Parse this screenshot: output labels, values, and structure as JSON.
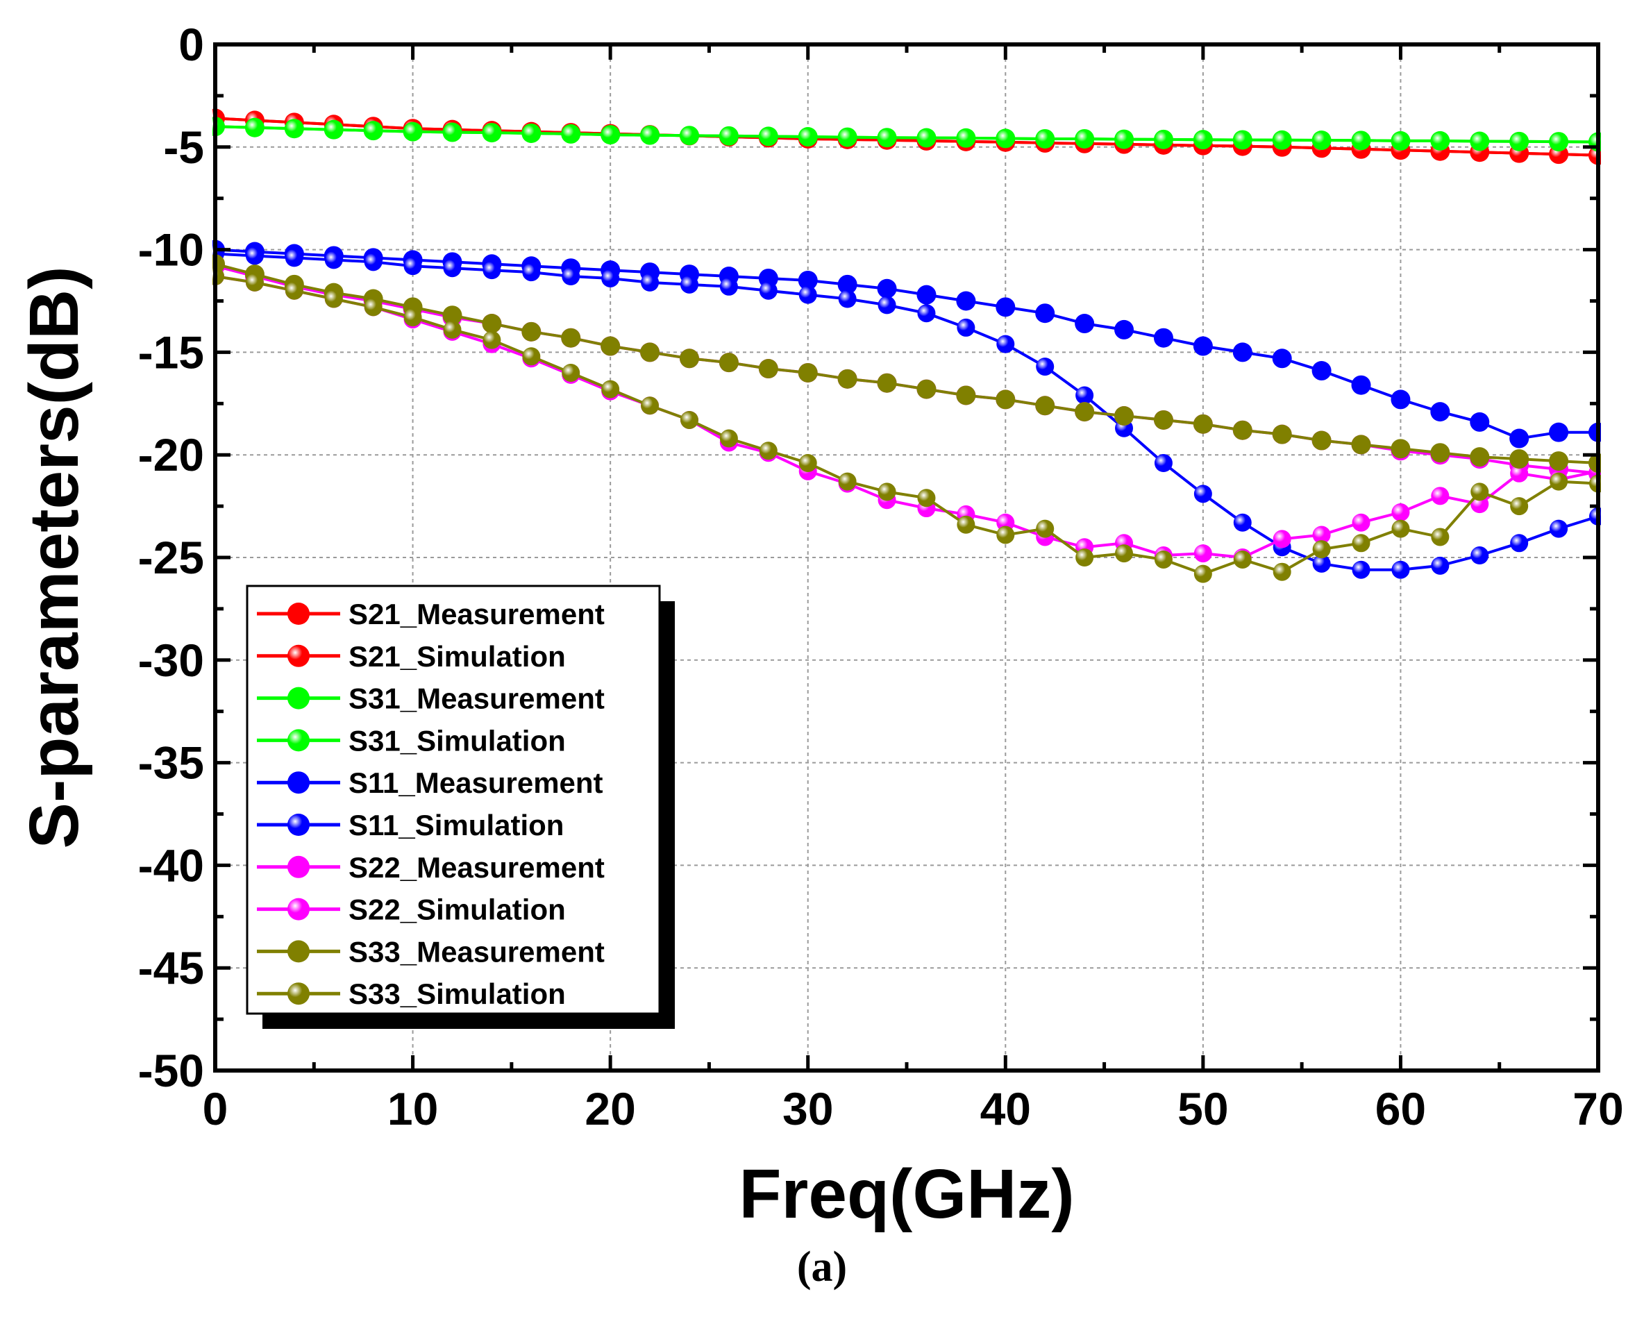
{
  "caption": "(a)",
  "chart_data": {
    "type": "line",
    "title": "",
    "xlabel": "Freq(GHz)",
    "ylabel": "S-parameters(dB)",
    "xlim": [
      0,
      70
    ],
    "ylim": [
      -50,
      0
    ],
    "xticks": [
      0,
      10,
      20,
      30,
      40,
      50,
      60,
      70
    ],
    "yticks": [
      0,
      -5,
      -10,
      -15,
      -20,
      -25,
      -30,
      -35,
      -40,
      -45,
      -50
    ],
    "grid": true,
    "legend_position": "lower-left",
    "colors": {
      "red": "#ff0000",
      "green": "#00ff00",
      "blue": "#0000ff",
      "magenta": "#ff00ff",
      "olive": "#808000"
    },
    "series": [
      {
        "name": "S21_Measurement",
        "color": "#ff0000",
        "marker": "filled",
        "x": [
          0,
          2,
          4,
          6,
          8,
          10,
          12,
          14,
          16,
          18,
          20,
          22,
          24,
          26,
          28,
          30,
          32,
          34,
          36,
          38,
          40,
          42,
          44,
          46,
          48,
          50,
          52,
          54,
          56,
          58,
          60,
          62,
          64,
          66,
          68,
          70
        ],
        "y": [
          -3.6,
          -3.7,
          -3.8,
          -3.9,
          -4.0,
          -4.1,
          -4.15,
          -4.2,
          -4.25,
          -4.3,
          -4.35,
          -4.4,
          -4.45,
          -4.5,
          -4.55,
          -4.6,
          -4.63,
          -4.66,
          -4.7,
          -4.73,
          -4.76,
          -4.8,
          -4.83,
          -4.86,
          -4.9,
          -4.93,
          -4.96,
          -5.0,
          -5.05,
          -5.1,
          -5.15,
          -5.2,
          -5.25,
          -5.3,
          -5.35,
          -5.4
        ]
      },
      {
        "name": "S21_Simulation",
        "color": "#ff0000",
        "marker": "shaded",
        "x": [
          0,
          2,
          4,
          6,
          8,
          10,
          12,
          14,
          16,
          18,
          20,
          22,
          24,
          26,
          28,
          30,
          32,
          34,
          36,
          38,
          40,
          42,
          44,
          46,
          48,
          50,
          52,
          54,
          56,
          58,
          60,
          62,
          64,
          66,
          68,
          70
        ],
        "y": [
          -3.6,
          -3.7,
          -3.8,
          -3.9,
          -4.0,
          -4.1,
          -4.15,
          -4.2,
          -4.25,
          -4.3,
          -4.35,
          -4.4,
          -4.45,
          -4.5,
          -4.55,
          -4.6,
          -4.63,
          -4.66,
          -4.7,
          -4.73,
          -4.76,
          -4.8,
          -4.83,
          -4.86,
          -4.9,
          -4.93,
          -4.96,
          -5.0,
          -5.05,
          -5.1,
          -5.15,
          -5.2,
          -5.25,
          -5.3,
          -5.35,
          -5.4
        ]
      },
      {
        "name": "S31_Measurement",
        "color": "#00ff00",
        "marker": "filled",
        "x": [
          0,
          2,
          4,
          6,
          8,
          10,
          12,
          14,
          16,
          18,
          20,
          22,
          24,
          26,
          28,
          30,
          32,
          34,
          36,
          38,
          40,
          42,
          44,
          46,
          48,
          50,
          52,
          54,
          56,
          58,
          60,
          62,
          64,
          66,
          68,
          70
        ],
        "y": [
          -4.0,
          -4.05,
          -4.1,
          -4.15,
          -4.2,
          -4.25,
          -4.28,
          -4.3,
          -4.33,
          -4.36,
          -4.4,
          -4.42,
          -4.44,
          -4.46,
          -4.48,
          -4.5,
          -4.52,
          -4.54,
          -4.55,
          -4.56,
          -4.58,
          -4.6,
          -4.6,
          -4.62,
          -4.63,
          -4.64,
          -4.65,
          -4.66,
          -4.67,
          -4.68,
          -4.7,
          -4.7,
          -4.72,
          -4.73,
          -4.74,
          -4.75
        ]
      },
      {
        "name": "S31_Simulation",
        "color": "#00ff00",
        "marker": "shaded",
        "x": [
          0,
          2,
          4,
          6,
          8,
          10,
          12,
          14,
          16,
          18,
          20,
          22,
          24,
          26,
          28,
          30,
          32,
          34,
          36,
          38,
          40,
          42,
          44,
          46,
          48,
          50,
          52,
          54,
          56,
          58,
          60,
          62,
          64,
          66,
          68,
          70
        ],
        "y": [
          -4.0,
          -4.05,
          -4.1,
          -4.15,
          -4.2,
          -4.25,
          -4.28,
          -4.3,
          -4.33,
          -4.36,
          -4.4,
          -4.42,
          -4.44,
          -4.46,
          -4.48,
          -4.5,
          -4.52,
          -4.54,
          -4.55,
          -4.56,
          -4.58,
          -4.6,
          -4.6,
          -4.62,
          -4.63,
          -4.64,
          -4.65,
          -4.66,
          -4.67,
          -4.68,
          -4.7,
          -4.7,
          -4.72,
          -4.73,
          -4.74,
          -4.75
        ]
      },
      {
        "name": "S11_Measurement",
        "color": "#0000ff",
        "marker": "filled",
        "x": [
          0,
          2,
          4,
          6,
          8,
          10,
          12,
          14,
          16,
          18,
          20,
          22,
          24,
          26,
          28,
          30,
          32,
          34,
          36,
          38,
          40,
          42,
          44,
          46,
          48,
          50,
          52,
          54,
          56,
          58,
          60,
          62,
          64,
          66,
          68,
          70
        ],
        "y": [
          -10.0,
          -10.1,
          -10.2,
          -10.3,
          -10.4,
          -10.5,
          -10.6,
          -10.7,
          -10.8,
          -10.9,
          -11.0,
          -11.1,
          -11.2,
          -11.3,
          -11.4,
          -11.5,
          -11.7,
          -11.9,
          -12.2,
          -12.5,
          -12.8,
          -13.1,
          -13.6,
          -13.9,
          -14.3,
          -14.7,
          -15.0,
          -15.3,
          -15.9,
          -16.6,
          -17.3,
          -17.9,
          -18.4,
          -19.2,
          -18.9,
          -18.9
        ]
      },
      {
        "name": "S11_Simulation",
        "color": "#0000ff",
        "marker": "shaded",
        "x": [
          0,
          2,
          4,
          6,
          8,
          10,
          12,
          14,
          16,
          18,
          20,
          22,
          24,
          26,
          28,
          30,
          32,
          34,
          36,
          38,
          40,
          42,
          44,
          46,
          48,
          50,
          52,
          54,
          56,
          58,
          60,
          62,
          64,
          66,
          68,
          70
        ],
        "y": [
          -10.2,
          -10.3,
          -10.4,
          -10.5,
          -10.6,
          -10.8,
          -10.9,
          -11.0,
          -11.1,
          -11.3,
          -11.4,
          -11.6,
          -11.7,
          -11.8,
          -12.0,
          -12.2,
          -12.4,
          -12.7,
          -13.1,
          -13.8,
          -14.6,
          -15.7,
          -17.1,
          -18.7,
          -20.4,
          -21.9,
          -23.3,
          -24.5,
          -25.3,
          -25.6,
          -25.6,
          -25.4,
          -24.9,
          -24.3,
          -23.6,
          -23.0
        ]
      },
      {
        "name": "S22_Measurement",
        "color": "#ff00ff",
        "marker": "filled",
        "x": [
          0,
          2,
          4,
          6,
          8,
          10,
          12,
          14,
          16,
          18,
          20,
          22,
          24,
          26,
          28,
          30,
          32,
          34,
          36,
          38,
          40,
          42,
          44,
          46,
          48,
          50,
          52,
          54,
          56,
          58,
          60,
          62,
          64,
          66,
          68,
          70
        ],
        "y": [
          -10.8,
          -11.3,
          -11.8,
          -12.2,
          -12.5,
          -12.9,
          -13.3,
          -13.6,
          -14.0,
          -14.3,
          -14.7,
          -15.0,
          -15.3,
          -15.5,
          -15.8,
          -16.0,
          -16.3,
          -16.5,
          -16.8,
          -17.1,
          -17.3,
          -17.6,
          -17.9,
          -18.1,
          -18.3,
          -18.5,
          -18.8,
          -19.0,
          -19.3,
          -19.5,
          -19.8,
          -20.0,
          -20.2,
          -20.5,
          -20.7,
          -20.9
        ]
      },
      {
        "name": "S22_Simulation",
        "color": "#ff00ff",
        "marker": "shaded",
        "x": [
          0,
          2,
          4,
          6,
          8,
          10,
          12,
          14,
          16,
          18,
          20,
          22,
          24,
          26,
          28,
          30,
          32,
          34,
          36,
          38,
          40,
          42,
          44,
          46,
          48,
          50,
          52,
          54,
          56,
          58,
          60,
          62,
          64,
          66,
          68,
          70
        ],
        "y": [
          -11.3,
          -11.6,
          -12.0,
          -12.4,
          -12.8,
          -13.4,
          -14.0,
          -14.6,
          -15.3,
          -16.1,
          -16.9,
          -17.6,
          -18.3,
          -19.4,
          -19.9,
          -20.8,
          -21.4,
          -22.2,
          -22.6,
          -22.9,
          -23.3,
          -24.0,
          -24.5,
          -24.3,
          -24.9,
          -24.8,
          -25.0,
          -24.1,
          -23.9,
          -23.3,
          -22.8,
          -22.0,
          -22.4,
          -20.9,
          -21.2,
          -20.8
        ]
      },
      {
        "name": "S33_Measurement",
        "color": "#808000",
        "marker": "filled",
        "x": [
          0,
          2,
          4,
          6,
          8,
          10,
          12,
          14,
          16,
          18,
          20,
          22,
          24,
          26,
          28,
          30,
          32,
          34,
          36,
          38,
          40,
          42,
          44,
          46,
          48,
          50,
          52,
          54,
          56,
          58,
          60,
          62,
          64,
          66,
          68,
          70
        ],
        "y": [
          -10.7,
          -11.2,
          -11.7,
          -12.1,
          -12.4,
          -12.8,
          -13.2,
          -13.6,
          -14.0,
          -14.3,
          -14.7,
          -15.0,
          -15.3,
          -15.5,
          -15.8,
          -16.0,
          -16.3,
          -16.5,
          -16.8,
          -17.1,
          -17.3,
          -17.6,
          -17.9,
          -18.1,
          -18.3,
          -18.5,
          -18.8,
          -19.0,
          -19.3,
          -19.5,
          -19.7,
          -19.9,
          -20.1,
          -20.2,
          -20.3,
          -20.4
        ]
      },
      {
        "name": "S33_Simulation",
        "color": "#808000",
        "marker": "shaded",
        "x": [
          0,
          2,
          4,
          6,
          8,
          10,
          12,
          14,
          16,
          18,
          20,
          22,
          24,
          26,
          28,
          30,
          32,
          34,
          36,
          38,
          40,
          42,
          44,
          46,
          48,
          50,
          52,
          54,
          56,
          58,
          60,
          62,
          64,
          66,
          68,
          70
        ],
        "y": [
          -11.3,
          -11.6,
          -12.0,
          -12.4,
          -12.8,
          -13.3,
          -13.9,
          -14.4,
          -15.2,
          -16.0,
          -16.8,
          -17.6,
          -18.3,
          -19.2,
          -19.8,
          -20.4,
          -21.3,
          -21.8,
          -22.1,
          -23.4,
          -23.9,
          -23.6,
          -25.0,
          -24.8,
          -25.1,
          -25.8,
          -25.1,
          -25.7,
          -24.6,
          -24.3,
          -23.6,
          -24.0,
          -21.8,
          -22.5,
          -21.3,
          -21.4
        ]
      }
    ]
  }
}
